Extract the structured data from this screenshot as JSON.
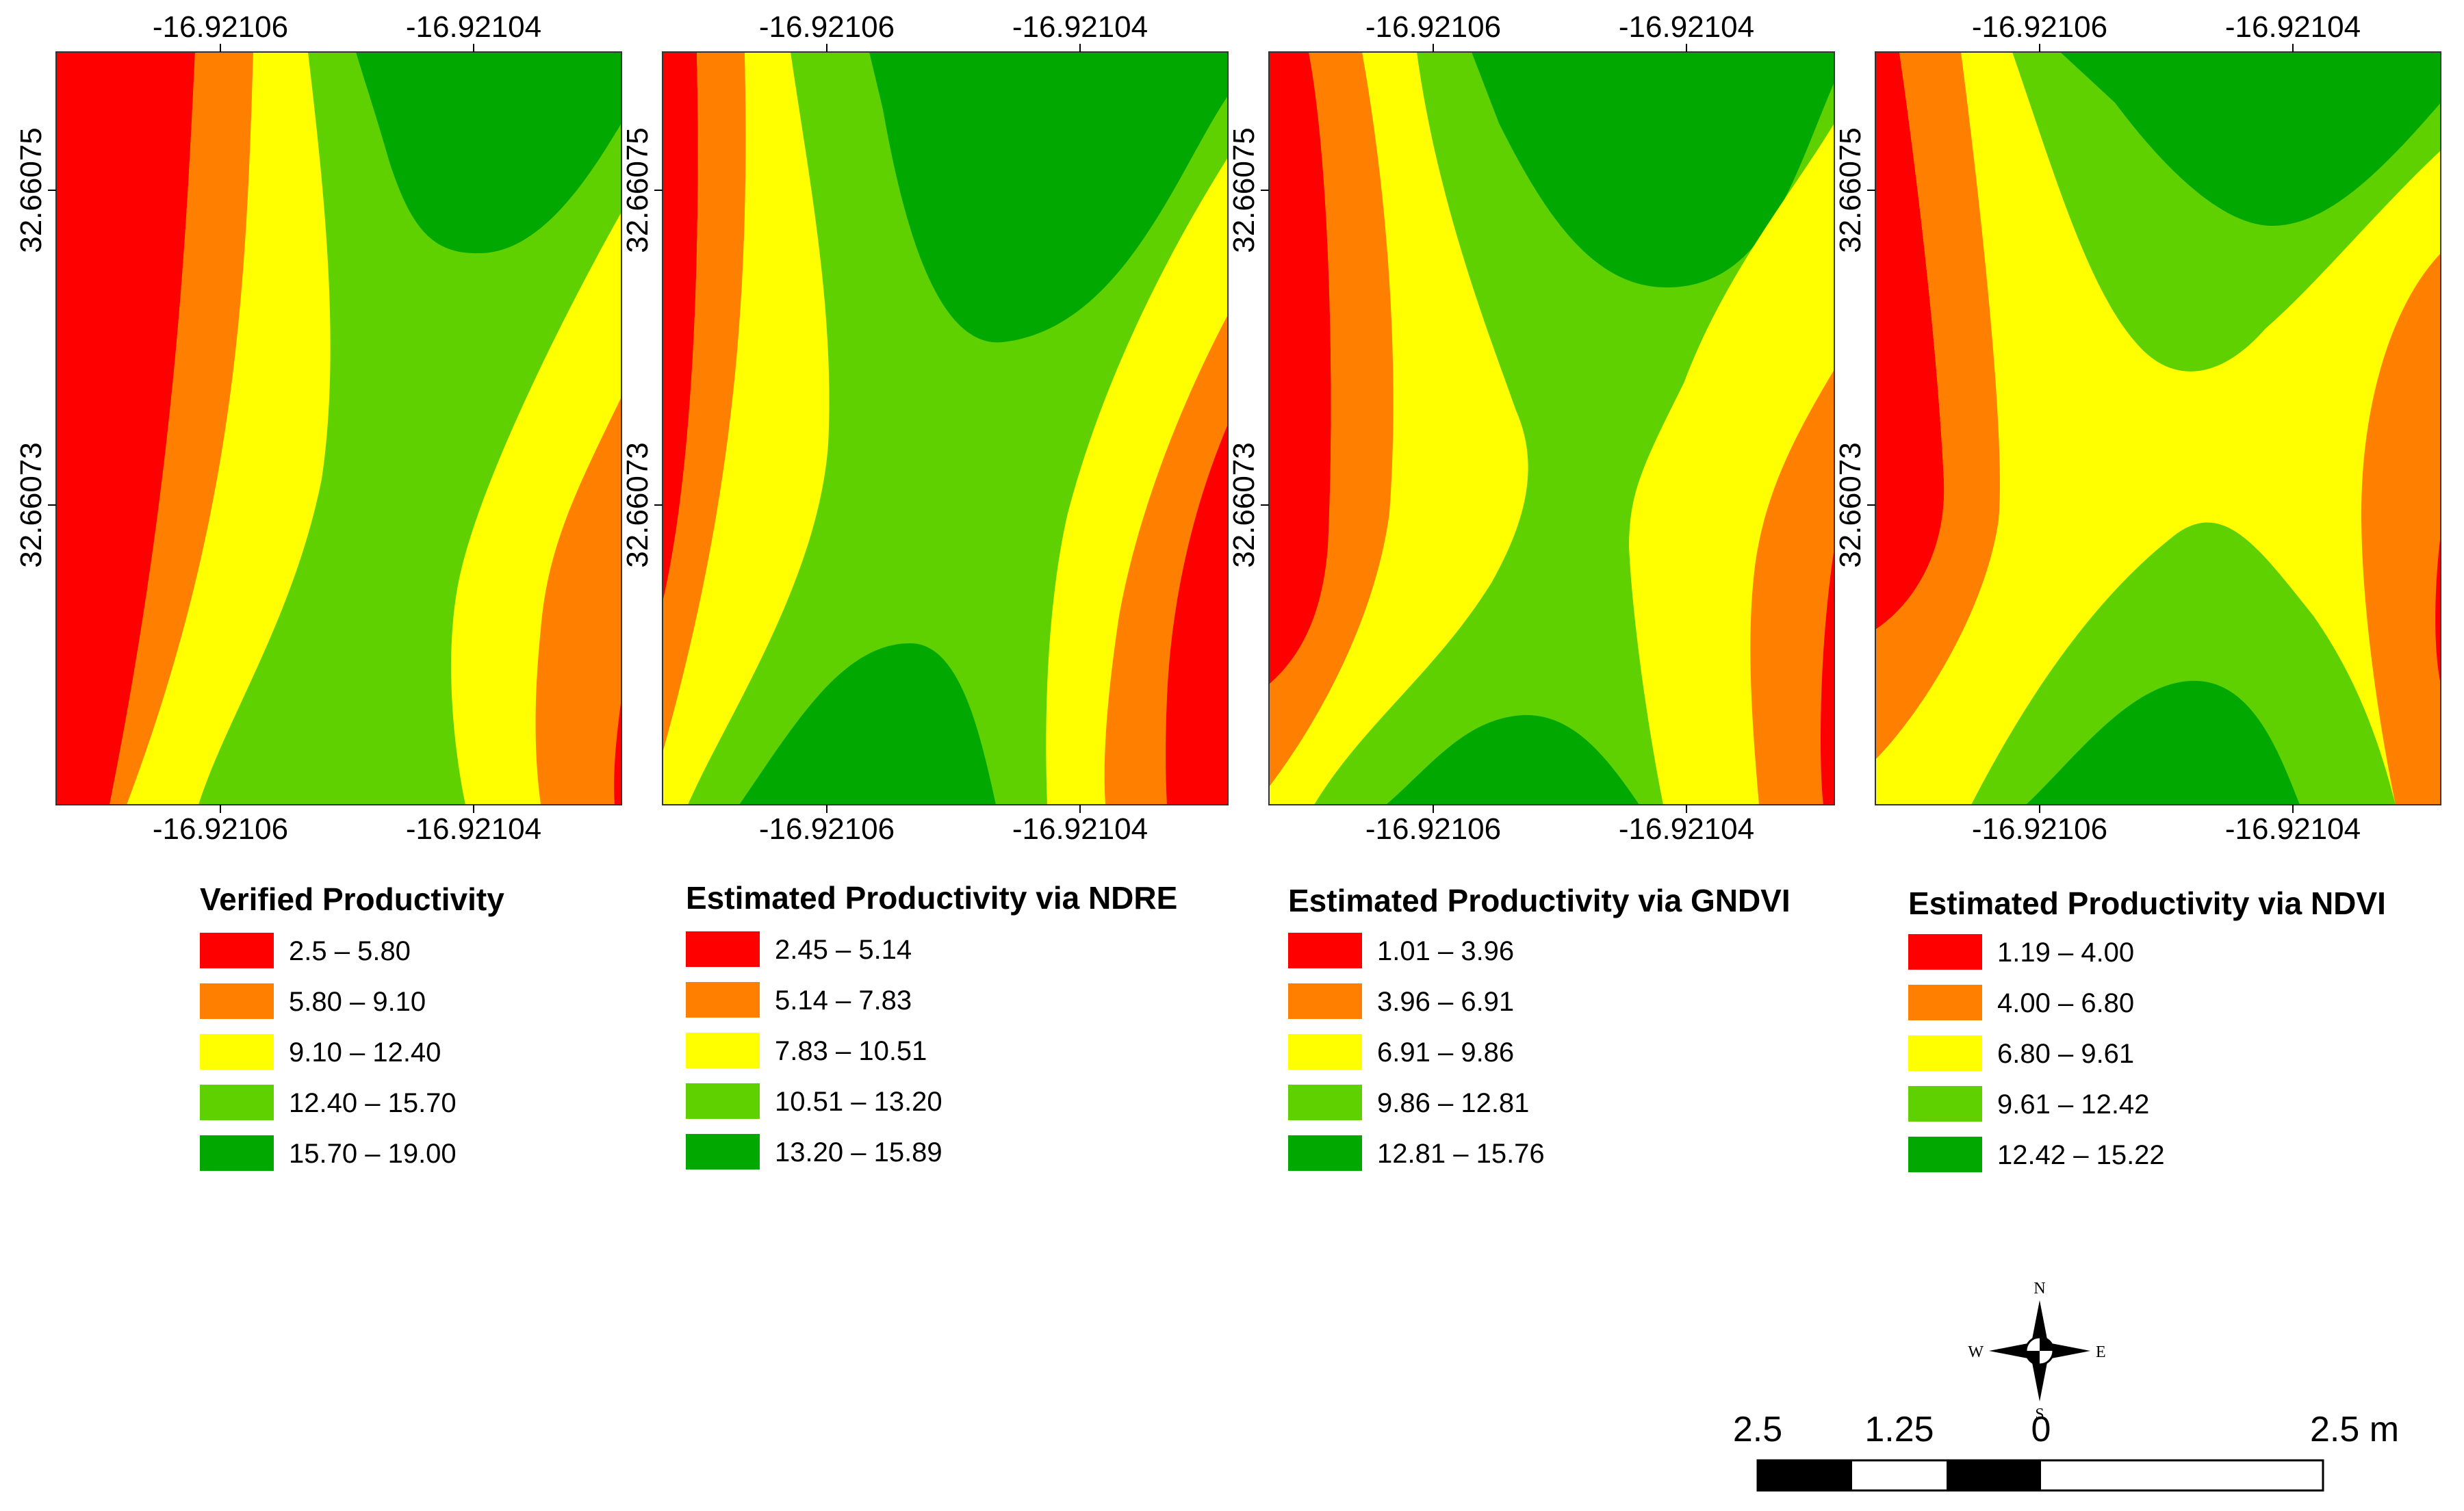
{
  "colors": {
    "c1": "#ff0000",
    "c2": "#ff8000",
    "c3": "#ffff00",
    "c4": "#5fd000",
    "c5": "#00a800"
  },
  "panels": [
    {
      "title": "Verified Productivity",
      "x_ticks": [
        "-16.92106",
        "-16.92104"
      ],
      "y_ticks": [
        "32.66075",
        "32.66073"
      ],
      "legend": [
        "2.5 – 5.80",
        "5.80 – 9.10",
        "9.10 – 12.40",
        "12.40 – 15.70",
        "15.70 – 19.00"
      ]
    },
    {
      "title": "Estimated Productivity via NDRE",
      "x_ticks": [
        "-16.92106",
        "-16.92104"
      ],
      "y_ticks": [
        "32.66075",
        "32.66073"
      ],
      "legend": [
        "2.45 – 5.14",
        "5.14 – 7.83",
        "7.83 – 10.51",
        "10.51 – 13.20",
        "13.20 – 15.89"
      ]
    },
    {
      "title": "Estimated Productivity via GNDVI",
      "x_ticks": [
        "-16.92106",
        "-16.92104"
      ],
      "y_ticks": [
        "32.66075",
        "32.66073"
      ],
      "legend": [
        "1.01 – 3.96",
        "3.96 – 6.91",
        "6.91 – 9.86",
        "9.86 – 12.81",
        "12.81 – 15.76"
      ]
    },
    {
      "title": "Estimated Productivity via NDVI",
      "x_ticks": [
        "-16.92106",
        "-16.92104"
      ],
      "y_ticks": [
        "32.66075",
        "32.66073"
      ],
      "legend": [
        "1.19 – 4.00",
        "4.00 – 6.80",
        "6.80 – 9.61",
        "9.61 – 12.42",
        "12.42 – 15.22"
      ]
    }
  ],
  "compass": {
    "north": "N",
    "south": "S",
    "east": "E",
    "west": "W"
  },
  "scale_bar": {
    "labels": [
      "2.5",
      "1.25",
      "0",
      "2.5 m"
    ]
  }
}
